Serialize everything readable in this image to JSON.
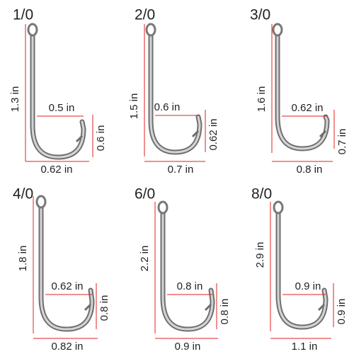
{
  "hooks": [
    {
      "size": "1/0",
      "length": "1.3 in",
      "gap": "0.5 in",
      "point": "0.6 in",
      "width": "0.62 in"
    },
    {
      "size": "2/0",
      "length": "1.5 in",
      "gap": "0.6 in",
      "point": "0.62 in",
      "width": "0.7 in"
    },
    {
      "size": "3/0",
      "length": "1.6 in",
      "gap": "0.62 in",
      "point": "0.7 in",
      "width": "0.8 in"
    },
    {
      "size": "4/0",
      "length": "1.8 in",
      "gap": "0.62 in",
      "point": "0.8 in",
      "width": "0.82 in"
    },
    {
      "size": "6/0",
      "length": "2.2 in",
      "gap": "0.8 in",
      "point": "0.8 in",
      "width": "0.9 in"
    },
    {
      "size": "8/0",
      "length": "2.9 in",
      "gap": "0.9 in",
      "point": "0.9 in",
      "width": "1.1 in"
    }
  ]
}
